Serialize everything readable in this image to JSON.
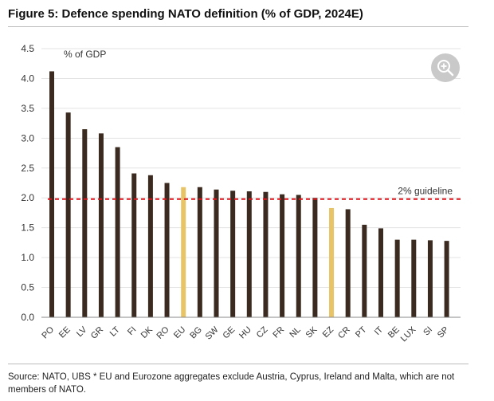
{
  "header": {
    "title": "Figure 5: Defence spending NATO definition (% of GDP, 2024E)"
  },
  "zoom_button": {
    "icon": "zoom-in-icon"
  },
  "footer": {
    "source": "Source: NATO, UBS * EU and Eurozone aggregates exclude Austria, Cyprus, Ireland and Malta, which are not members of NATO."
  },
  "colors": {
    "bar": "#3a2a1f",
    "aggregate_bar": "#e8c466",
    "guideline": "#e0141b"
  },
  "chart_data": {
    "type": "bar",
    "title": "",
    "ylabel": "% of GDP",
    "ylim": [
      0,
      4.5
    ],
    "yticks": [
      "0.0",
      "0.5",
      "1.0",
      "1.5",
      "2.0",
      "2.5",
      "3.0",
      "3.5",
      "4.0",
      "4.5"
    ],
    "categories": [
      "PO",
      "EE",
      "LV",
      "GR",
      "LT",
      "FI",
      "DK",
      "RO",
      "EU",
      "BG",
      "SW",
      "GE",
      "HU",
      "CZ",
      "FR",
      "NL",
      "SK",
      "EZ",
      "CR",
      "PT",
      "IT",
      "BE",
      "LUX",
      "SI",
      "SP"
    ],
    "values": [
      4.12,
      3.43,
      3.15,
      3.08,
      2.85,
      2.41,
      2.38,
      2.25,
      2.18,
      2.18,
      2.14,
      2.12,
      2.11,
      2.1,
      2.06,
      2.05,
      2.0,
      1.83,
      1.81,
      1.55,
      1.49,
      1.3,
      1.3,
      1.29,
      1.28
    ],
    "highlight": [
      "EU",
      "EZ"
    ],
    "guideline": {
      "value": 1.98,
      "label": "2% guideline"
    },
    "grid": true
  }
}
